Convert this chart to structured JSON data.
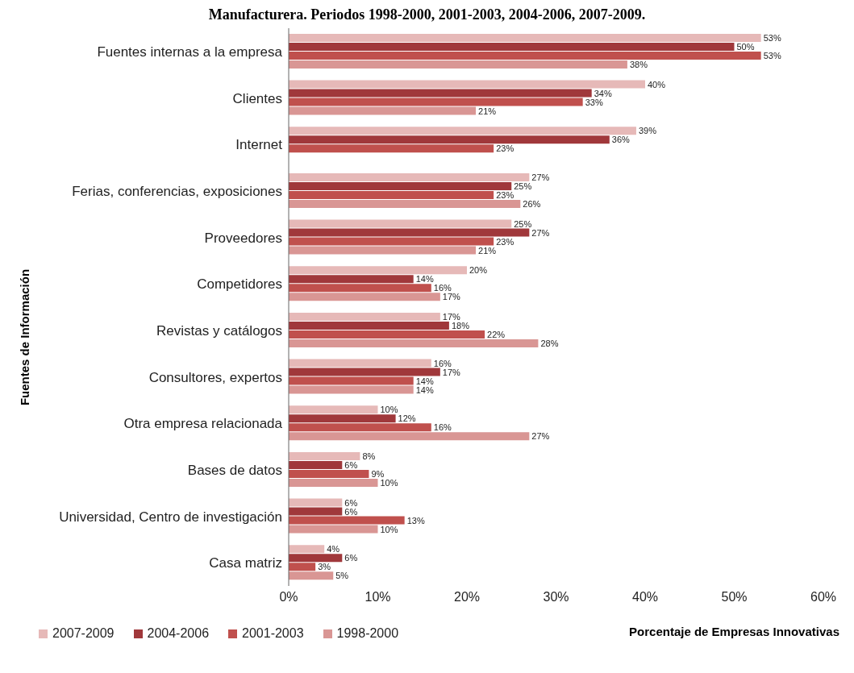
{
  "chart_data": {
    "type": "bar",
    "orientation": "horizontal",
    "title": "Manufacturera. Periodos 1998-2000, 2001-2003, 2004-2006, 2007-2009.",
    "xlabel": "Porcentaje de Empresas Innovativas",
    "ylabel": "Fuentes de Información",
    "categories": [
      "Fuentes internas a la empresa",
      "Clientes",
      "Internet",
      "Ferias, conferencias, exposiciones",
      "Proveedores",
      "Competidores",
      "Revistas y catálogos",
      "Consultores, expertos",
      "Otra empresa relacionada",
      "Bases de datos",
      "Universidad, Centro de investigación",
      "Casa matriz"
    ],
    "series": [
      {
        "name": "2007-2009",
        "color": "#e6b9b8",
        "values": [
          53,
          40,
          39,
          27,
          25,
          20,
          17,
          16,
          10,
          8,
          6,
          4
        ],
        "value_labels": [
          "53%",
          "40%",
          "39%",
          "27%",
          "25%",
          "20%",
          "17%",
          "16%",
          "10%",
          "8%",
          "6%",
          "4%"
        ]
      },
      {
        "name": "2004-2006",
        "color": "#a0383b",
        "values": [
          50,
          34,
          36,
          25,
          27,
          14,
          18,
          17,
          12,
          6,
          6,
          6
        ],
        "value_labels": [
          "50%",
          "34%",
          "36%",
          "25%",
          "27%",
          "14%",
          "18%",
          "17%",
          "12%",
          "6%",
          "6%",
          "6%"
        ]
      },
      {
        "name": "2001-2003",
        "color": "#c0504d",
        "values": [
          53,
          33,
          23,
          23,
          23,
          16,
          22,
          14,
          16,
          9,
          13,
          3
        ],
        "value_labels": [
          "53%",
          "33%",
          "23%",
          "23%",
          "23%",
          "16%",
          "22%",
          "14%",
          "16%",
          "9%",
          "13%",
          "3%"
        ]
      },
      {
        "name": "1998-2000",
        "color": "#d99694",
        "values": [
          38,
          21,
          null,
          26,
          21,
          17,
          28,
          14,
          27,
          10,
          10,
          5
        ],
        "value_labels": [
          "38%",
          "21%",
          null,
          "26%",
          "21%",
          "17%",
          "28%",
          "14%",
          "27%",
          "10%",
          "10%",
          "5%"
        ]
      }
    ],
    "xlim": [
      0,
      60
    ],
    "xticks": [
      {
        "value": 0,
        "label": "0%"
      },
      {
        "value": 10,
        "label": "10%"
      },
      {
        "value": 20,
        "label": "20%"
      },
      {
        "value": 30,
        "label": "30%"
      },
      {
        "value": 40,
        "label": "40%"
      },
      {
        "value": 50,
        "label": "50%"
      },
      {
        "value": 60,
        "label": "60%"
      }
    ],
    "legend": "bottom left"
  }
}
